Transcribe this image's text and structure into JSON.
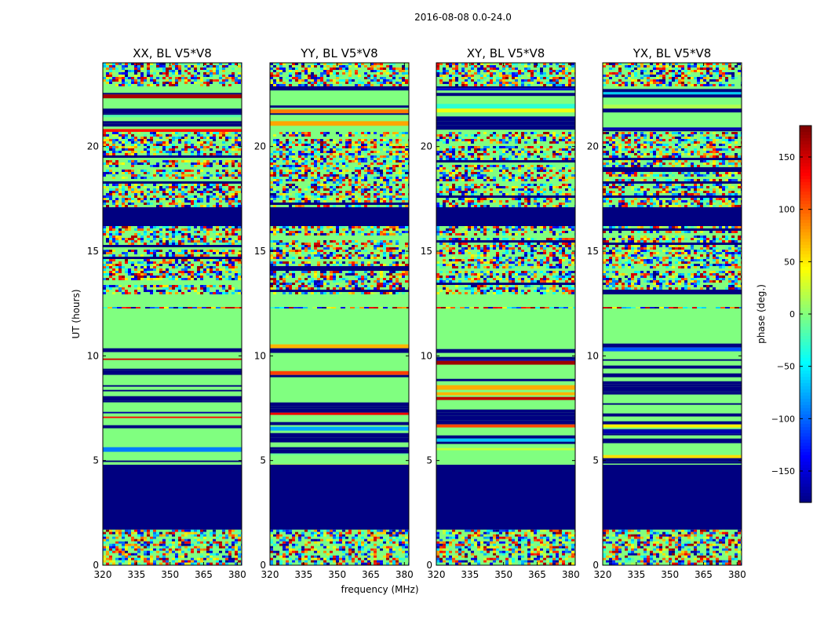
{
  "figure": {
    "suptitle": "2016-08-08 0.0-24.0"
  },
  "chart_data": {
    "type": "heatmap",
    "title": "2016-08-08 0.0-24.0",
    "xlabel": "frequency (MHz)",
    "ylabel": "UT (hours)",
    "xlim": [
      320,
      382
    ],
    "ylim": [
      0,
      24
    ],
    "xticks": [
      320,
      335,
      350,
      365,
      380
    ],
    "yticks": [
      0,
      5,
      10,
      15,
      20
    ],
    "panels": [
      {
        "title": "XX, BL V5*V8",
        "noise": "full"
      },
      {
        "title": "YY, BL V5*V8",
        "noise": "full"
      },
      {
        "title": "XY, BL V5*V8",
        "noise": "full"
      },
      {
        "title": "YX, BL V5*V8",
        "noise": "full"
      }
    ],
    "colorbar": {
      "label": "phase (deg.)",
      "colormap": "jet",
      "range": [
        -180,
        180
      ],
      "ticks": [
        150,
        100,
        50,
        0,
        -50,
        -100,
        -150
      ],
      "tick_labels": [
        "150",
        "100",
        "50",
        "0",
        "−50",
        "−100",
        "−150"
      ]
    },
    "time_segments": [
      {
        "start": 0.0,
        "end": 1.7,
        "kind": "noise"
      },
      {
        "start": 1.7,
        "end": 4.8,
        "kind": "flagged"
      },
      {
        "start": 4.8,
        "end": 10.7,
        "kind": "striped"
      },
      {
        "start": 10.7,
        "end": 13.0,
        "kind": "flat"
      },
      {
        "start": 13.0,
        "end": 16.2,
        "kind": "noise_banded"
      },
      {
        "start": 16.2,
        "end": 17.1,
        "kind": "flagged"
      },
      {
        "start": 17.1,
        "end": 20.7,
        "kind": "noise_banded"
      },
      {
        "start": 20.7,
        "end": 22.9,
        "kind": "striped"
      },
      {
        "start": 22.9,
        "end": 24.0,
        "kind": "noise"
      }
    ],
    "fringe_line_hour": 12.3,
    "flat_phase_deg": 0,
    "flagged_phase_deg": -180
  },
  "colors": {
    "background": "#ffffff",
    "axis": "#000000"
  }
}
